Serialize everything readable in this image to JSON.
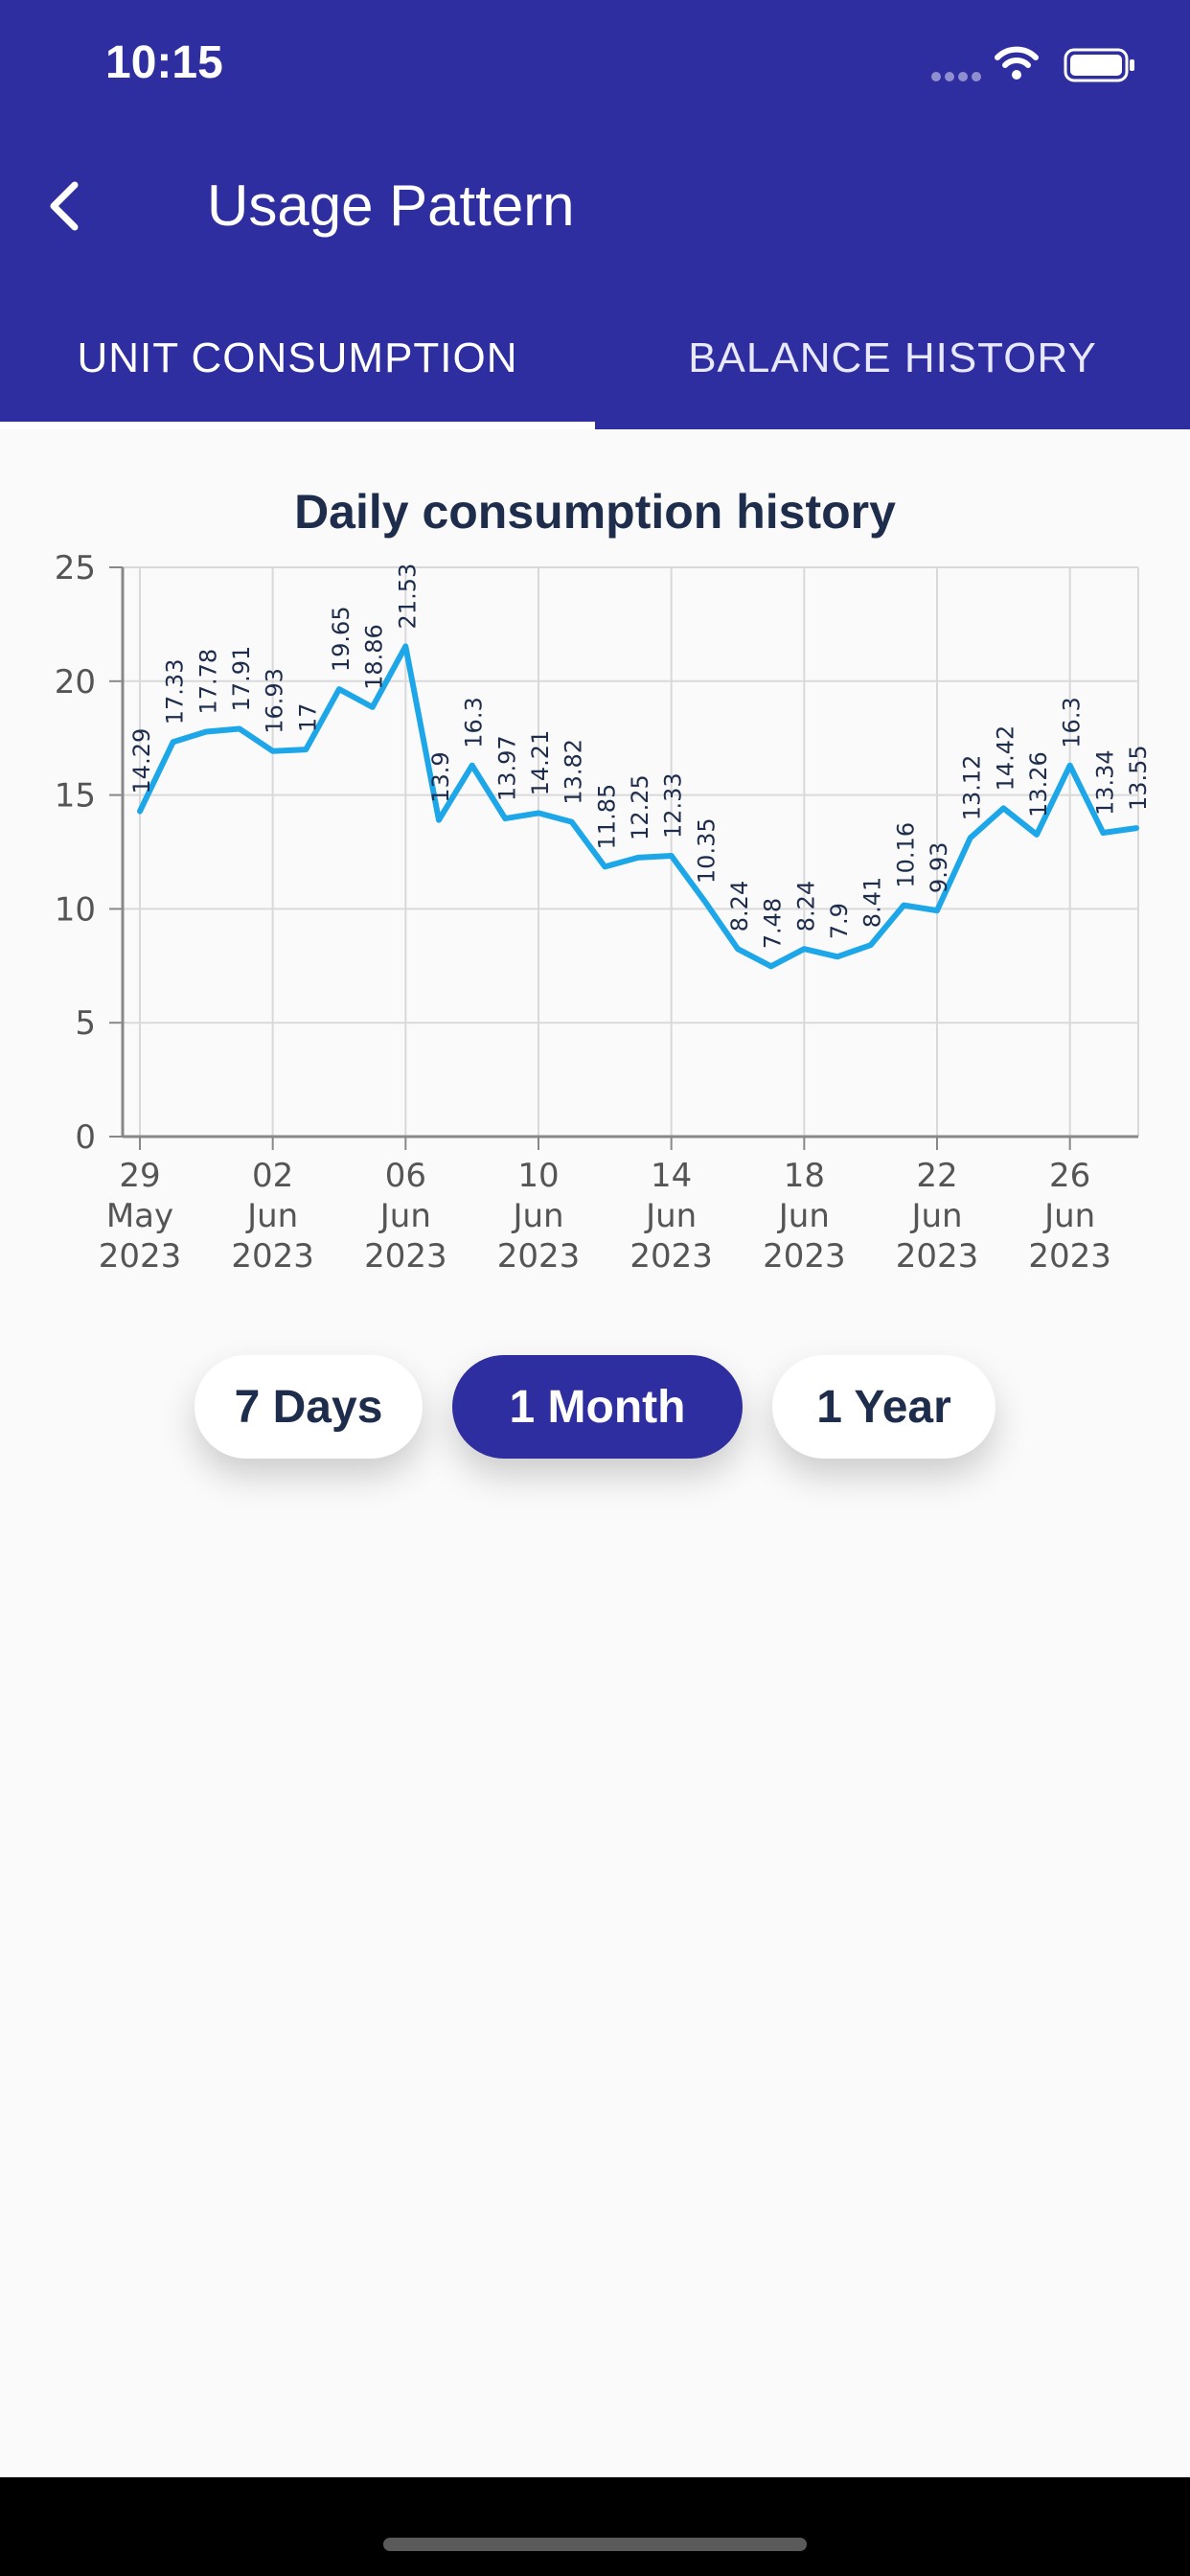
{
  "status_bar": {
    "time": "10:15"
  },
  "header": {
    "title": "Usage Pattern",
    "back_icon": "chevron-left-icon"
  },
  "tabs": [
    {
      "label": "UNIT CONSUMPTION",
      "selected": true
    },
    {
      "label": "BALANCE HISTORY",
      "selected": false
    }
  ],
  "range_buttons": [
    {
      "label": "7 Days",
      "selected": false
    },
    {
      "label": "1 Month",
      "selected": true
    },
    {
      "label": "1 Year",
      "selected": false
    }
  ],
  "colors": {
    "header": "#2e2ea1",
    "line": "#1ea7e8",
    "text_dark": "#1f2d4d"
  },
  "chart_data": {
    "type": "line",
    "title": "Daily consumption history",
    "ylim": [
      0,
      25
    ],
    "yticks": [
      0,
      5,
      10,
      15,
      20,
      25
    ],
    "grid": true,
    "x_tick_labels": [
      [
        "29",
        "May",
        "2023"
      ],
      [
        "02",
        "Jun",
        "2023"
      ],
      [
        "06",
        "Jun",
        "2023"
      ],
      [
        "10",
        "Jun",
        "2023"
      ],
      [
        "14",
        "Jun",
        "2023"
      ],
      [
        "18",
        "Jun",
        "2023"
      ],
      [
        "22",
        "Jun",
        "2023"
      ],
      [
        "26",
        "Jun",
        "2023"
      ]
    ],
    "x": [
      "2023-05-29",
      "2023-05-30",
      "2023-05-31",
      "2023-06-01",
      "2023-06-02",
      "2023-06-03",
      "2023-06-04",
      "2023-06-05",
      "2023-06-06",
      "2023-06-07",
      "2023-06-08",
      "2023-06-09",
      "2023-06-10",
      "2023-06-11",
      "2023-06-12",
      "2023-06-13",
      "2023-06-14",
      "2023-06-15",
      "2023-06-16",
      "2023-06-17",
      "2023-06-18",
      "2023-06-19",
      "2023-06-20",
      "2023-06-21",
      "2023-06-22",
      "2023-06-23",
      "2023-06-24",
      "2023-06-25",
      "2023-06-26",
      "2023-06-27",
      "2023-06-28"
    ],
    "values": [
      14.29,
      17.33,
      17.78,
      17.91,
      16.93,
      17,
      19.65,
      18.86,
      21.53,
      13.9,
      16.3,
      13.97,
      14.21,
      13.82,
      11.85,
      12.25,
      12.33,
      10.35,
      8.24,
      7.48,
      8.24,
      7.9,
      8.41,
      10.16,
      9.93,
      13.12,
      14.42,
      13.26,
      16.3,
      13.34,
      13.55
    ]
  }
}
